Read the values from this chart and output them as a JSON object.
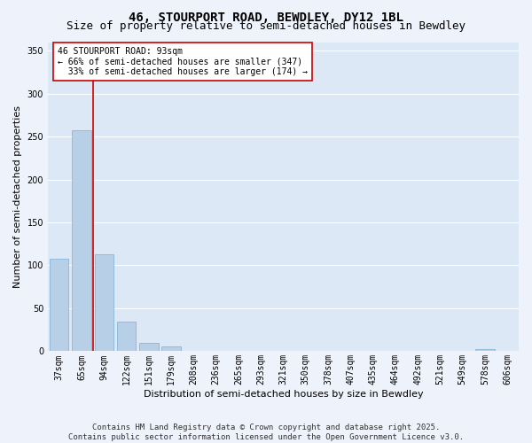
{
  "title_line1": "46, STOURPORT ROAD, BEWDLEY, DY12 1BL",
  "title_line2": "Size of property relative to semi-detached houses in Bewdley",
  "xlabel": "Distribution of semi-detached houses by size in Bewdley",
  "ylabel": "Number of semi-detached properties",
  "bins": [
    "37sqm",
    "65sqm",
    "94sqm",
    "122sqm",
    "151sqm",
    "179sqm",
    "208sqm",
    "236sqm",
    "265sqm",
    "293sqm",
    "321sqm",
    "350sqm",
    "378sqm",
    "407sqm",
    "435sqm",
    "464sqm",
    "492sqm",
    "521sqm",
    "549sqm",
    "578sqm",
    "606sqm"
  ],
  "values": [
    108,
    257,
    113,
    34,
    10,
    6,
    0,
    0,
    0,
    0,
    0,
    0,
    0,
    0,
    0,
    0,
    0,
    0,
    0,
    3,
    0
  ],
  "bar_color": "#b8cfe8",
  "bar_edgecolor": "#7aafd4",
  "background_color": "#dce8f5",
  "grid_color": "#ffffff",
  "vline_color": "#cc0000",
  "vline_x": 1.5,
  "annotation_text": "46 STOURPORT ROAD: 93sqm\n← 66% of semi-detached houses are smaller (347)\n  33% of semi-detached houses are larger (174) →",
  "annotation_box_color": "#ffffff",
  "annotation_box_edgecolor": "#cc0000",
  "ylim": [
    0,
    360
  ],
  "yticks": [
    0,
    50,
    100,
    150,
    200,
    250,
    300,
    350
  ],
  "footnote": "Contains HM Land Registry data © Crown copyright and database right 2025.\nContains public sector information licensed under the Open Government Licence v3.0.",
  "title_fontsize": 10,
  "subtitle_fontsize": 9,
  "axis_label_fontsize": 8,
  "tick_fontsize": 7,
  "annotation_fontsize": 7,
  "footnote_fontsize": 6.5
}
